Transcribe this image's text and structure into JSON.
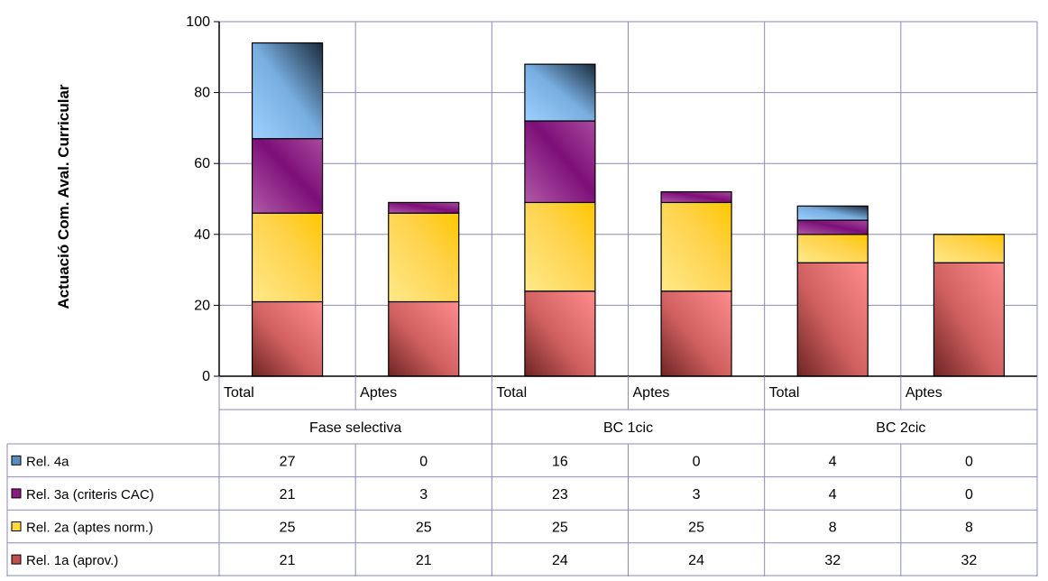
{
  "chart_data": {
    "type": "bar",
    "stacked": true,
    "ylabel": "Actuació Com. Aval. Curricular",
    "ylim": [
      0,
      100
    ],
    "yticks": [
      0,
      20,
      40,
      60,
      80,
      100
    ],
    "grid": true,
    "groups": [
      "Fase selectiva",
      "BC 1cic",
      "BC 2cic"
    ],
    "categories": [
      "Total",
      "Aptes",
      "Total",
      "Aptes",
      "Total",
      "Aptes"
    ],
    "series": [
      {
        "name": "Rel. 1a (aprov.)",
        "values": [
          21,
          21,
          24,
          24,
          32,
          32
        ],
        "color": "#c05050"
      },
      {
        "name": "Rel. 2a (aptes norm.)",
        "values": [
          25,
          25,
          25,
          25,
          8,
          8
        ],
        "color": "#ffd940"
      },
      {
        "name": "Rel. 3a (criteris CAC)",
        "values": [
          21,
          3,
          23,
          3,
          4,
          0
        ],
        "color": "#8a1a82"
      },
      {
        "name": "Rel. 4a",
        "values": [
          27,
          0,
          16,
          0,
          4,
          0
        ],
        "color": "#5a8cbe"
      }
    ],
    "table_row_order": [
      3,
      2,
      1,
      0
    ]
  }
}
